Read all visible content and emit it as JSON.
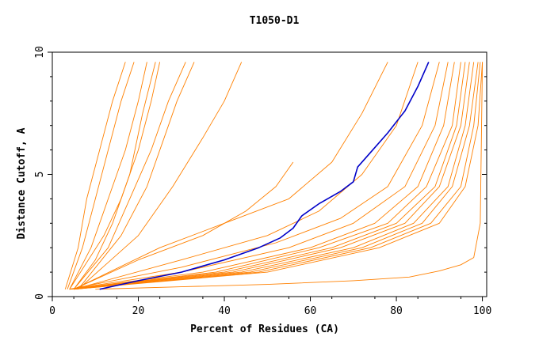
{
  "chart_data": {
    "type": "line",
    "title": "T1050-D1",
    "xlabel": "Percent of Residues (CA)",
    "ylabel": "Distance Cutoff, A",
    "xlim": [
      0,
      101
    ],
    "ylim": [
      0,
      10
    ],
    "xticks": [
      0,
      20,
      40,
      60,
      80,
      100
    ],
    "yticks": [
      0,
      5,
      10
    ],
    "xticklabels": [
      "0",
      "20",
      "40",
      "60",
      "80",
      "100"
    ],
    "yticklabels": [
      "0",
      "5",
      "10"
    ],
    "grid": false,
    "legend": "none",
    "colors": {
      "others": "#ff8000",
      "highlight": "#0000c8",
      "axes": "#000000"
    },
    "series": [
      {
        "color": "highlight",
        "x": [
          11,
          20,
          30,
          40,
          48,
          53,
          56,
          58,
          62,
          67,
          70,
          71,
          74,
          78,
          82,
          85,
          87.5
        ],
        "y": [
          0.3,
          0.65,
          1.0,
          1.5,
          2.0,
          2.4,
          2.8,
          3.3,
          3.8,
          4.3,
          4.7,
          5.3,
          5.9,
          6.7,
          7.6,
          8.6,
          9.6
        ]
      },
      {
        "color": "others",
        "x": [
          3,
          6,
          8,
          11,
          14,
          17
        ],
        "y": [
          0.3,
          2.0,
          4.0,
          6.0,
          8.0,
          9.6
        ]
      },
      {
        "color": "others",
        "x": [
          3.5,
          7,
          10,
          13,
          16,
          19
        ],
        "y": [
          0.3,
          2.0,
          4.0,
          6.0,
          8.0,
          9.6
        ]
      },
      {
        "color": "others",
        "x": [
          4,
          9,
          13,
          17,
          20,
          22
        ],
        "y": [
          0.3,
          2.0,
          4.0,
          6.0,
          8.0,
          9.6
        ]
      },
      {
        "color": "others",
        "x": [
          5,
          10,
          14,
          18,
          21,
          24
        ],
        "y": [
          0.3,
          1.5,
          3.0,
          5.0,
          7.5,
          9.6
        ]
      },
      {
        "color": "others",
        "x": [
          4,
          12,
          16,
          20,
          23,
          25
        ],
        "y": [
          0.3,
          2.5,
          4.0,
          6.0,
          8.0,
          9.6
        ]
      },
      {
        "color": "others",
        "x": [
          5,
          13,
          18,
          23,
          27,
          31
        ],
        "y": [
          0.3,
          2.0,
          4.0,
          6.0,
          8.0,
          9.6
        ]
      },
      {
        "color": "others",
        "x": [
          6,
          16,
          22,
          26,
          29,
          33
        ],
        "y": [
          0.3,
          2.5,
          4.5,
          6.5,
          8.0,
          9.6
        ]
      },
      {
        "color": "others",
        "x": [
          6,
          20,
          28,
          35,
          40,
          44
        ],
        "y": [
          0.3,
          2.5,
          4.5,
          6.5,
          8.0,
          9.6
        ]
      },
      {
        "color": "others",
        "x": [
          5,
          20,
          35,
          45,
          52,
          56
        ],
        "y": [
          0.3,
          1.5,
          2.5,
          3.5,
          4.5,
          5.5
        ]
      },
      {
        "color": "others",
        "x": [
          5,
          25,
          40,
          55,
          65,
          72,
          78
        ],
        "y": [
          0.3,
          2.0,
          3.0,
          4.0,
          5.5,
          7.5,
          9.6
        ]
      },
      {
        "color": "others",
        "x": [
          5,
          30,
          50,
          62,
          72,
          80,
          85
        ],
        "y": [
          0.3,
          1.5,
          2.5,
          3.5,
          5.0,
          7.0,
          9.6
        ]
      },
      {
        "color": "others",
        "x": [
          4,
          30,
          52,
          67,
          78,
          86,
          90
        ],
        "y": [
          0.3,
          1.2,
          2.2,
          3.2,
          4.5,
          7.0,
          9.6
        ]
      },
      {
        "color": "others",
        "x": [
          4,
          30,
          55,
          70,
          82,
          89,
          92
        ],
        "y": [
          0.3,
          1.0,
          2.0,
          3.0,
          4.5,
          7.0,
          9.6
        ]
      },
      {
        "color": "others",
        "x": [
          4,
          35,
          60,
          75,
          85,
          91,
          93.5
        ],
        "y": [
          0.3,
          1.0,
          2.0,
          3.0,
          4.5,
          7.0,
          9.6
        ]
      },
      {
        "color": "others",
        "x": [
          4,
          38,
          62,
          78,
          87,
          93,
          95
        ],
        "y": [
          0.3,
          1.0,
          2.0,
          3.0,
          4.5,
          7.0,
          9.6
        ]
      },
      {
        "color": "others",
        "x": [
          4,
          40,
          65,
          80,
          89,
          94,
          96
        ],
        "y": [
          0.3,
          1.0,
          2.0,
          3.0,
          4.5,
          7.0,
          9.6
        ]
      },
      {
        "color": "others",
        "x": [
          4,
          42,
          67,
          82,
          90,
          95,
          97
        ],
        "y": [
          0.3,
          1.0,
          2.0,
          3.0,
          4.5,
          7.0,
          9.6
        ]
      },
      {
        "color": "others",
        "x": [
          4,
          44,
          70,
          84,
          92,
          96,
          98
        ],
        "y": [
          0.3,
          1.0,
          2.0,
          3.0,
          4.5,
          7.0,
          9.6
        ]
      },
      {
        "color": "others",
        "x": [
          5,
          46,
          72,
          86,
          93,
          97,
          99
        ],
        "y": [
          0.3,
          1.0,
          2.0,
          3.0,
          4.5,
          7.0,
          9.6
        ]
      },
      {
        "color": "others",
        "x": [
          5,
          48,
          74,
          88,
          95,
          98,
          99.5
        ],
        "y": [
          0.3,
          1.0,
          2.0,
          3.0,
          4.5,
          7.0,
          9.6
        ]
      },
      {
        "color": "others",
        "x": [
          5,
          50,
          76,
          90,
          96,
          99,
          100
        ],
        "y": [
          0.3,
          1.0,
          2.0,
          3.0,
          4.5,
          7.0,
          9.6
        ]
      },
      {
        "color": "others",
        "x": [
          10,
          30,
          50,
          70,
          83,
          90,
          95,
          98,
          99.5,
          100
        ],
        "y": [
          0.3,
          0.4,
          0.5,
          0.65,
          0.8,
          1.05,
          1.3,
          1.6,
          3.0,
          9.6
        ]
      }
    ]
  }
}
